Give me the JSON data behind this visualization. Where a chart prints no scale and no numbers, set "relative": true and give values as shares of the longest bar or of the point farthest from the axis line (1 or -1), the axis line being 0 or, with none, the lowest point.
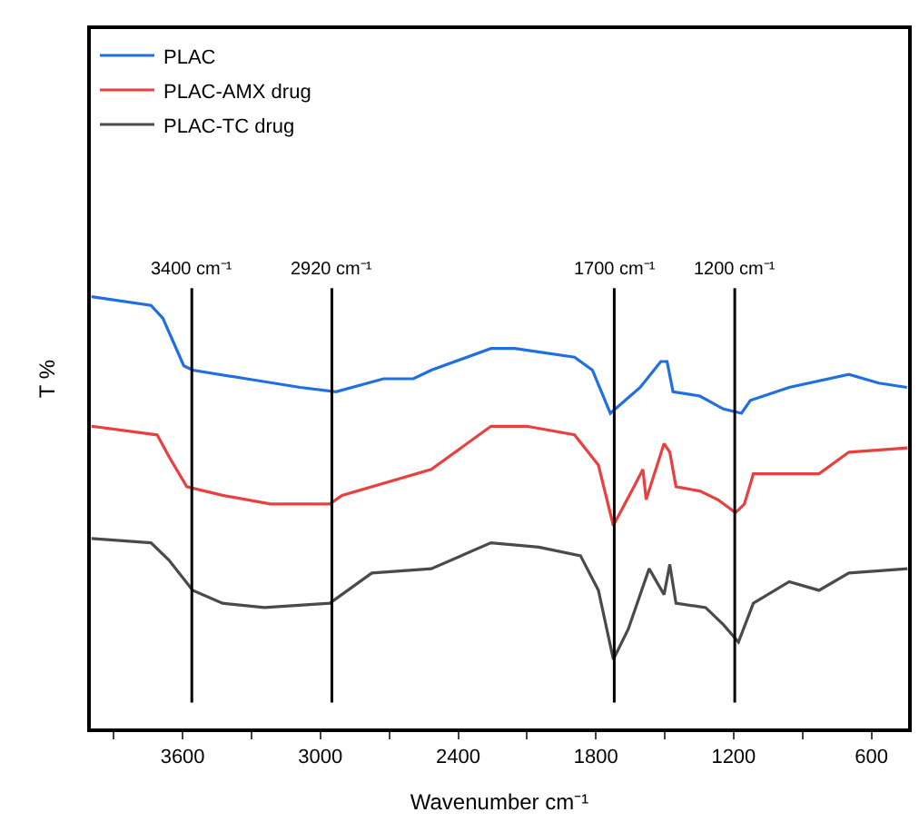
{
  "chart_data": {
    "type": "line",
    "relative": true,
    "xlabel": "Wavenumber cm⁻¹",
    "ylabel": "T %",
    "xlim": [
      4000,
      440
    ],
    "xticks": [
      {
        "value": 3900,
        "label": null
      },
      3600,
      {
        "value": 3300,
        "label": null
      },
      3000,
      {
        "value": 2700,
        "label": null
      },
      2400,
      {
        "value": 2100,
        "label": null
      },
      1800,
      {
        "value": 1500,
        "label": null
      },
      1200,
      {
        "value": 900,
        "label": null
      },
      600
    ],
    "x": [
      3997,
      3738,
      3686,
      3595,
      3556,
      3322,
      3088,
      2932,
      2725,
      2595,
      2517,
      2257,
      2153,
      1893,
      1815,
      1737,
      1607,
      1517,
      1490,
      1464,
      1347,
      1244,
      1166,
      1127,
      958,
      698,
      568,
      445
    ],
    "series": [
      {
        "name": "PLAC",
        "color": "#1f6fe0",
        "values": [
          1.0,
          0.98,
          0.95,
          0.84,
          0.83,
          0.81,
          0.79,
          0.78,
          0.81,
          0.81,
          0.83,
          0.88,
          0.88,
          0.86,
          0.83,
          0.73,
          0.79,
          0.85,
          0.85,
          0.78,
          0.77,
          0.74,
          0.73,
          0.76,
          0.79,
          0.82,
          0.8,
          0.79
        ]
      },
      {
        "name": "PLAC-AMX drug",
        "color": "#e8403f",
        "x": [
          3997,
          3711,
          3660,
          3582,
          3426,
          3218,
          2959,
          2906,
          2517,
          2257,
          2101,
          1893,
          1789,
          1724,
          1634,
          1595,
          1581,
          1503,
          1478,
          1451,
          1347,
          1269,
          1192,
          1153,
          1114,
          958,
          828,
          698,
          443
        ],
        "values": [
          0.7,
          0.68,
          0.63,
          0.56,
          0.54,
          0.52,
          0.52,
          0.54,
          0.6,
          0.7,
          0.7,
          0.68,
          0.61,
          0.47,
          0.56,
          0.6,
          0.53,
          0.66,
          0.64,
          0.56,
          0.55,
          0.53,
          0.5,
          0.52,
          0.59,
          0.59,
          0.59,
          0.64,
          0.65
        ]
      },
      {
        "name": "PLAC-TC drug",
        "color": "#4a4a4a",
        "x": [
          3997,
          3738,
          3660,
          3556,
          3426,
          3244,
          2959,
          2776,
          2517,
          2257,
          2049,
          1867,
          1789,
          1724,
          1659,
          1568,
          1503,
          1478,
          1451,
          1322,
          1244,
          1179,
          1114,
          958,
          828,
          698,
          443
        ],
        "values": [
          0.44,
          0.43,
          0.39,
          0.32,
          0.29,
          0.28,
          0.29,
          0.36,
          0.37,
          0.43,
          0.42,
          0.4,
          0.32,
          0.16,
          0.23,
          0.37,
          0.31,
          0.38,
          0.29,
          0.28,
          0.24,
          0.2,
          0.29,
          0.34,
          0.32,
          0.36,
          0.37
        ]
      }
    ],
    "ref_lines": [
      {
        "axis": "x",
        "value": 3560,
        "label": "3400 cm⁻¹",
        "color": "#000000"
      },
      {
        "axis": "x",
        "value": 2950,
        "label": "2920 cm⁻¹",
        "color": "#000000"
      },
      {
        "axis": "x",
        "value": 1720,
        "label": "1700 cm⁻¹",
        "color": "#000000"
      },
      {
        "axis": "x",
        "value": 1195,
        "label": "1200 cm⁻¹",
        "color": "#000000"
      }
    ],
    "legend": "top left",
    "marker": "none",
    "line_style": "solid"
  }
}
